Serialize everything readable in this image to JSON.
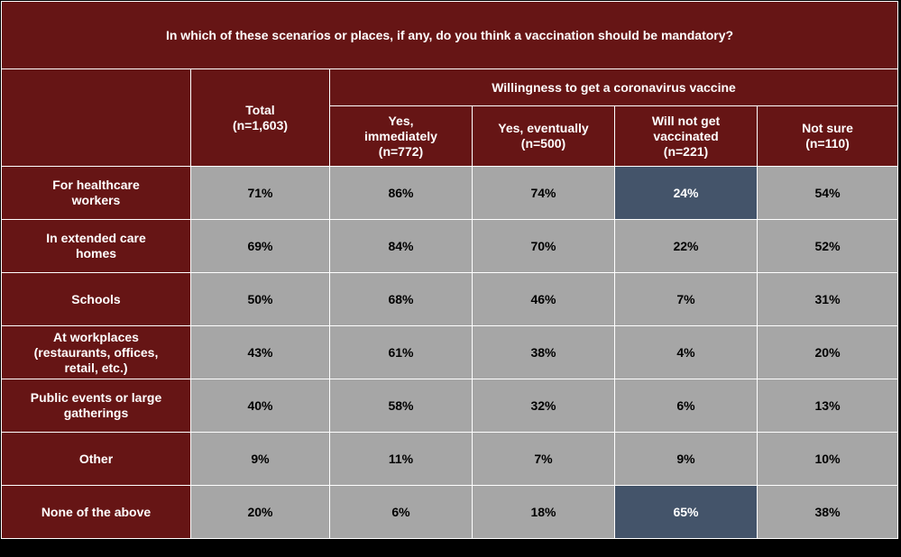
{
  "title": "In which of these scenarios or places, if any, do you think a vaccination should be mandatory?",
  "colors": {
    "header_bg": "#661515",
    "cell_bg": "#a6a6a6",
    "highlight_bg": "#44546a",
    "border": "#ffffff"
  },
  "chart_data": {
    "type": "table",
    "title": "In which of these scenarios or places, if any, do you think a vaccination should be mandatory?",
    "group_header": "Willingness to get a coronavirus vaccine",
    "columns": [
      {
        "label": "Total (n=1,603)"
      },
      {
        "label": "Yes, immediately (n=772)"
      },
      {
        "label": "Yes, eventually (n=500)"
      },
      {
        "label": "Will not get vaccinated (n=221)"
      },
      {
        "label": "Not sure (n=110)"
      }
    ],
    "rows": [
      {
        "label": "For healthcare workers",
        "values": [
          "71%",
          "86%",
          "74%",
          "24%",
          "54%"
        ],
        "highlight": [
          false,
          false,
          false,
          true,
          false
        ]
      },
      {
        "label": "In extended care homes",
        "values": [
          "69%",
          "84%",
          "70%",
          "22%",
          "52%"
        ],
        "highlight": [
          false,
          false,
          false,
          false,
          false
        ]
      },
      {
        "label": "Schools",
        "values": [
          "50%",
          "68%",
          "46%",
          "7%",
          "31%"
        ],
        "highlight": [
          false,
          false,
          false,
          false,
          false
        ]
      },
      {
        "label": "At workplaces (restaurants, offices, retail, etc.)",
        "values": [
          "43%",
          "61%",
          "38%",
          "4%",
          "20%"
        ],
        "highlight": [
          false,
          false,
          false,
          false,
          false
        ]
      },
      {
        "label": "Public events or large gatherings",
        "values": [
          "40%",
          "58%",
          "32%",
          "6%",
          "13%"
        ],
        "highlight": [
          false,
          false,
          false,
          false,
          false
        ]
      },
      {
        "label": "Other",
        "values": [
          "9%",
          "11%",
          "7%",
          "9%",
          "10%"
        ],
        "highlight": [
          false,
          false,
          false,
          false,
          false
        ]
      },
      {
        "label": "None of the above",
        "values": [
          "20%",
          "6%",
          "18%",
          "65%",
          "38%"
        ],
        "highlight": [
          false,
          false,
          false,
          true,
          false
        ]
      }
    ]
  }
}
